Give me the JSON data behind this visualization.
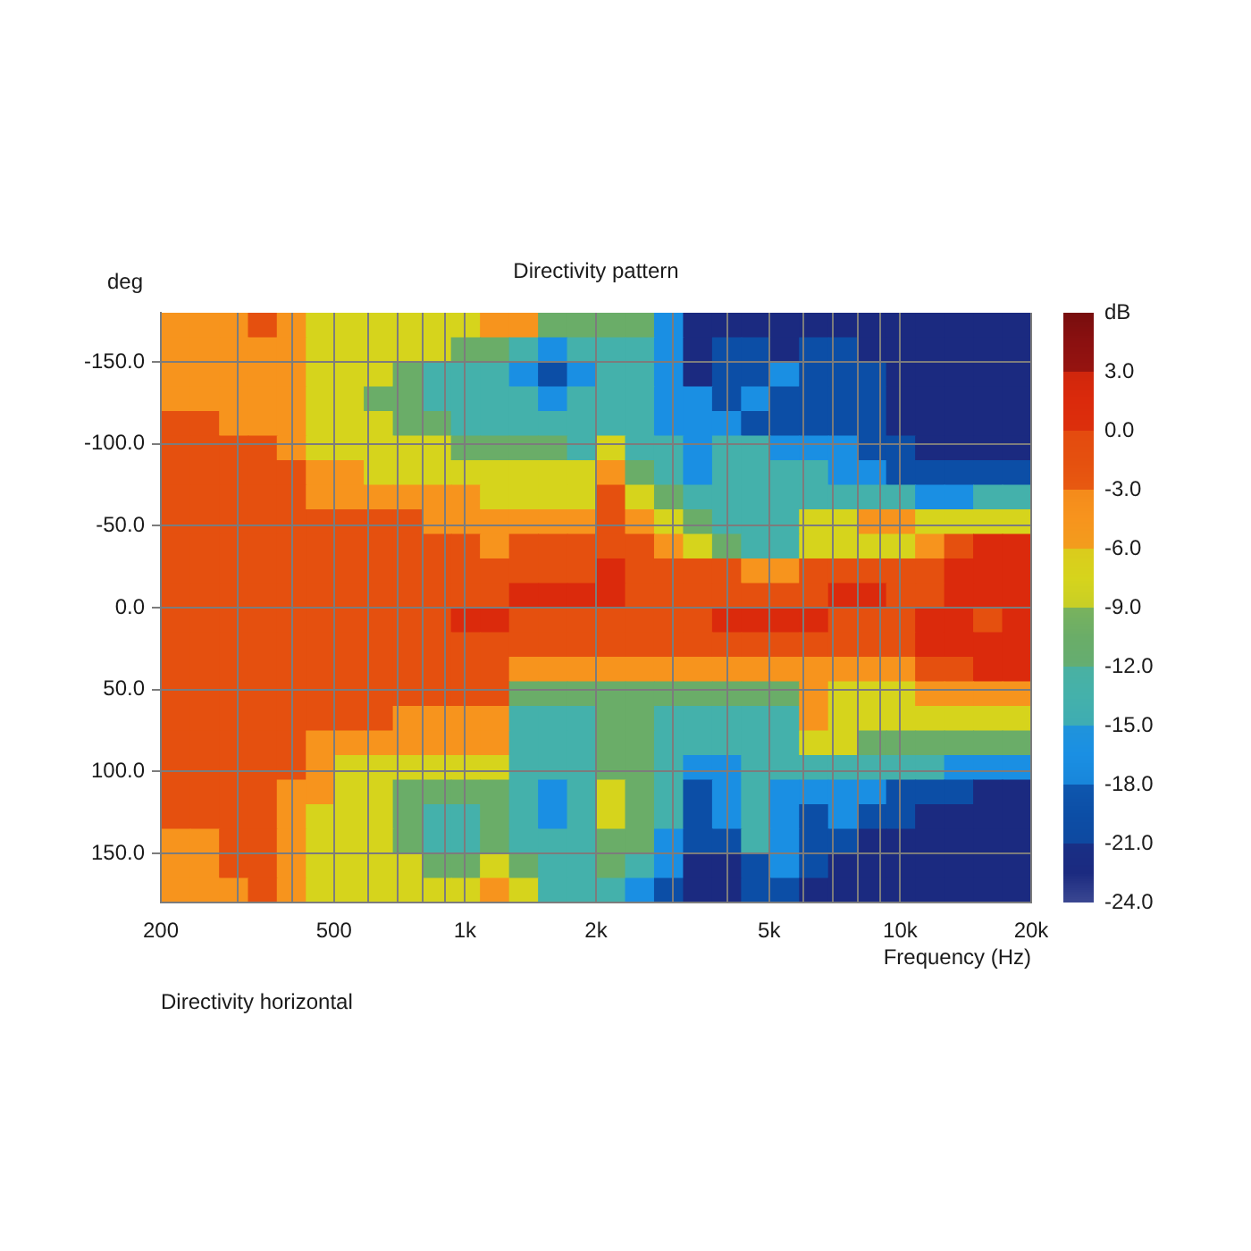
{
  "chart_data": {
    "type": "heatmap",
    "title": "Directivity pattern",
    "xlabel": "Frequency (Hz)",
    "ylabel": "deg",
    "clabel": "dB",
    "annotations": [
      "Directivity horizontal"
    ],
    "x": [
      216,
      252,
      294,
      342,
      399,
      465,
      542,
      632,
      737,
      860,
      1002,
      1169,
      1363,
      1589,
      1852,
      2160,
      2518,
      2936,
      3423,
      3991,
      4652,
      5424,
      6324,
      7373,
      8596,
      10024,
      11687,
      13626,
      15886,
      18520
    ],
    "cells": [
      [
        -4.5,
        -4.5,
        -4.5,
        -1.5,
        -4.5,
        -7.5,
        -7.5,
        -7.5,
        -7.5,
        -7.5,
        -7.5,
        -4.5,
        -4.5,
        -10.5,
        -10.5,
        -10.5,
        -10.5,
        -16.5,
        -22.5,
        -22.5,
        -22.5,
        -22.5,
        -22.5,
        -22.5,
        -22.5,
        -22.5,
        -22.5,
        -22.5,
        -22.5,
        -22.5
      ],
      [
        -4.5,
        -4.5,
        -4.5,
        -4.5,
        -4.5,
        -7.5,
        -7.5,
        -7.5,
        -7.5,
        -7.5,
        -10.5,
        -10.5,
        -13.5,
        -16.5,
        -13.5,
        -13.5,
        -13.5,
        -16.5,
        -22.5,
        -19.5,
        -19.5,
        -22.5,
        -19.5,
        -19.5,
        -22.5,
        -22.5,
        -22.5,
        -22.5,
        -22.5,
        -22.5
      ],
      [
        -4.5,
        -4.5,
        -4.5,
        -4.5,
        -4.5,
        -7.5,
        -7.5,
        -7.5,
        -10.5,
        -13.5,
        -13.5,
        -13.5,
        -16.5,
        -19.5,
        -16.5,
        -13.5,
        -13.5,
        -16.5,
        -22.5,
        -19.5,
        -19.5,
        -16.5,
        -19.5,
        -19.5,
        -19.5,
        -22.5,
        -22.5,
        -22.5,
        -22.5,
        -22.5
      ],
      [
        -4.5,
        -4.5,
        -4.5,
        -4.5,
        -4.5,
        -7.5,
        -7.5,
        -10.5,
        -10.5,
        -13.5,
        -13.5,
        -13.5,
        -13.5,
        -16.5,
        -13.5,
        -13.5,
        -13.5,
        -16.5,
        -16.5,
        -19.5,
        -16.5,
        -19.5,
        -19.5,
        -19.5,
        -19.5,
        -22.5,
        -22.5,
        -22.5,
        -22.5,
        -22.5
      ],
      [
        -1.5,
        -1.5,
        -4.5,
        -4.5,
        -4.5,
        -7.5,
        -7.5,
        -7.5,
        -10.5,
        -10.5,
        -13.5,
        -13.5,
        -13.5,
        -13.5,
        -13.5,
        -13.5,
        -13.5,
        -16.5,
        -16.5,
        -16.5,
        -19.5,
        -19.5,
        -19.5,
        -19.5,
        -19.5,
        -22.5,
        -22.5,
        -22.5,
        -22.5,
        -22.5
      ],
      [
        -1.5,
        -1.5,
        -1.5,
        -1.5,
        -4.5,
        -7.5,
        -7.5,
        -7.5,
        -7.5,
        -7.5,
        -10.5,
        -10.5,
        -10.5,
        -10.5,
        -13.5,
        -7.5,
        -13.5,
        -13.5,
        -16.5,
        -13.5,
        -13.5,
        -16.5,
        -16.5,
        -16.5,
        -19.5,
        -19.5,
        -22.5,
        -22.5,
        -22.5,
        -22.5
      ],
      [
        -1.5,
        -1.5,
        -1.5,
        -1.5,
        -1.5,
        -4.5,
        -4.5,
        -7.5,
        -7.5,
        -7.5,
        -7.5,
        -7.5,
        -7.5,
        -7.5,
        -7.5,
        -4.5,
        -10.5,
        -13.5,
        -16.5,
        -13.5,
        -13.5,
        -13.5,
        -13.5,
        -16.5,
        -16.5,
        -19.5,
        -19.5,
        -19.5,
        -19.5,
        -19.5
      ],
      [
        -1.5,
        -1.5,
        -1.5,
        -1.5,
        -1.5,
        -4.5,
        -4.5,
        -4.5,
        -4.5,
        -4.5,
        -4.5,
        -7.5,
        -7.5,
        -7.5,
        -7.5,
        -1.5,
        -7.5,
        -10.5,
        -13.5,
        -13.5,
        -13.5,
        -13.5,
        -13.5,
        -13.5,
        -13.5,
        -13.5,
        -16.5,
        -16.5,
        -13.5,
        -13.5
      ],
      [
        -1.5,
        -1.5,
        -1.5,
        -1.5,
        -1.5,
        -1.5,
        -1.5,
        -1.5,
        -1.5,
        -4.5,
        -4.5,
        -4.5,
        -4.5,
        -4.5,
        -4.5,
        -1.5,
        -4.5,
        -7.5,
        -10.5,
        -13.5,
        -13.5,
        -13.5,
        -7.5,
        -7.5,
        -4.5,
        -4.5,
        -7.5,
        -7.5,
        -7.5,
        -7.5
      ],
      [
        -1.5,
        -1.5,
        -1.5,
        -1.5,
        -1.5,
        -1.5,
        -1.5,
        -1.5,
        -1.5,
        -1.5,
        -1.5,
        -4.5,
        -1.5,
        -1.5,
        -1.5,
        -1.5,
        -1.5,
        -4.5,
        -7.5,
        -10.5,
        -13.5,
        -13.5,
        -7.5,
        -7.5,
        -7.5,
        -7.5,
        -4.5,
        -1.5,
        1.5,
        1.5
      ],
      [
        -1.5,
        -1.5,
        -1.5,
        -1.5,
        -1.5,
        -1.5,
        -1.5,
        -1.5,
        -1.5,
        -1.5,
        -1.5,
        -1.5,
        -1.5,
        -1.5,
        -1.5,
        1.5,
        -1.5,
        -1.5,
        -1.5,
        -1.5,
        -4.5,
        -4.5,
        -1.5,
        -1.5,
        -1.5,
        -1.5,
        -1.5,
        1.5,
        1.5,
        1.5
      ],
      [
        -1.5,
        -1.5,
        -1.5,
        -1.5,
        -1.5,
        -1.5,
        -1.5,
        -1.5,
        -1.5,
        -1.5,
        -1.5,
        -1.5,
        1.5,
        1.5,
        1.5,
        1.5,
        -1.5,
        -1.5,
        -1.5,
        -1.5,
        -1.5,
        -1.5,
        -1.5,
        1.5,
        1.5,
        -1.5,
        -1.5,
        1.5,
        1.5,
        1.5
      ],
      [
        -1.5,
        -1.5,
        -1.5,
        -1.5,
        -1.5,
        -1.5,
        -1.5,
        -1.5,
        -1.5,
        -1.5,
        1.5,
        1.5,
        -1.5,
        -1.5,
        -1.5,
        -1.5,
        -1.5,
        -1.5,
        -1.5,
        1.5,
        1.5,
        1.5,
        1.5,
        -1.5,
        -1.5,
        -1.5,
        1.5,
        1.5,
        -1.5,
        1.5
      ],
      [
        -1.5,
        -1.5,
        -1.5,
        -1.5,
        -1.5,
        -1.5,
        -1.5,
        -1.5,
        -1.5,
        -1.5,
        -1.5,
        -1.5,
        -1.5,
        -1.5,
        -1.5,
        -1.5,
        -1.5,
        -1.5,
        -1.5,
        -1.5,
        -1.5,
        -1.5,
        -1.5,
        -1.5,
        -1.5,
        -1.5,
        1.5,
        1.5,
        1.5,
        1.5
      ],
      [
        -1.5,
        -1.5,
        -1.5,
        -1.5,
        -1.5,
        -1.5,
        -1.5,
        -1.5,
        -1.5,
        -1.5,
        -1.5,
        -1.5,
        -4.5,
        -4.5,
        -4.5,
        -4.5,
        -4.5,
        -4.5,
        -4.5,
        -4.5,
        -4.5,
        -4.5,
        -4.5,
        -4.5,
        -4.5,
        -4.5,
        -1.5,
        -1.5,
        1.5,
        1.5
      ],
      [
        -1.5,
        -1.5,
        -1.5,
        -1.5,
        -1.5,
        -1.5,
        -1.5,
        -1.5,
        -1.5,
        -1.5,
        -1.5,
        -1.5,
        -10.5,
        -10.5,
        -10.5,
        -10.5,
        -10.5,
        -10.5,
        -10.5,
        -10.5,
        -10.5,
        -10.5,
        -4.5,
        -7.5,
        -7.5,
        -7.5,
        -4.5,
        -4.5,
        -4.5,
        -4.5
      ],
      [
        -1.5,
        -1.5,
        -1.5,
        -1.5,
        -1.5,
        -1.5,
        -1.5,
        -1.5,
        -4.5,
        -4.5,
        -4.5,
        -4.5,
        -13.5,
        -13.5,
        -13.5,
        -10.5,
        -10.5,
        -13.5,
        -13.5,
        -13.5,
        -13.5,
        -13.5,
        -4.5,
        -7.5,
        -7.5,
        -7.5,
        -7.5,
        -7.5,
        -7.5,
        -7.5
      ],
      [
        -1.5,
        -1.5,
        -1.5,
        -1.5,
        -1.5,
        -4.5,
        -4.5,
        -4.5,
        -4.5,
        -4.5,
        -4.5,
        -4.5,
        -13.5,
        -13.5,
        -13.5,
        -10.5,
        -10.5,
        -13.5,
        -13.5,
        -13.5,
        -13.5,
        -13.5,
        -7.5,
        -7.5,
        -10.5,
        -10.5,
        -10.5,
        -10.5,
        -10.5,
        -10.5
      ],
      [
        -1.5,
        -1.5,
        -1.5,
        -1.5,
        -1.5,
        -4.5,
        -7.5,
        -7.5,
        -7.5,
        -7.5,
        -7.5,
        -7.5,
        -13.5,
        -13.5,
        -13.5,
        -10.5,
        -10.5,
        -13.5,
        -16.5,
        -16.5,
        -13.5,
        -13.5,
        -13.5,
        -13.5,
        -13.5,
        -13.5,
        -13.5,
        -16.5,
        -16.5,
        -16.5
      ],
      [
        -1.5,
        -1.5,
        -1.5,
        -1.5,
        -4.5,
        -4.5,
        -7.5,
        -7.5,
        -10.5,
        -10.5,
        -10.5,
        -10.5,
        -13.5,
        -16.5,
        -13.5,
        -7.5,
        -10.5,
        -13.5,
        -19.5,
        -16.5,
        -13.5,
        -16.5,
        -16.5,
        -16.5,
        -16.5,
        -19.5,
        -19.5,
        -19.5,
        -22.5,
        -22.5
      ],
      [
        -1.5,
        -1.5,
        -1.5,
        -1.5,
        -4.5,
        -7.5,
        -7.5,
        -7.5,
        -10.5,
        -13.5,
        -13.5,
        -10.5,
        -13.5,
        -16.5,
        -13.5,
        -7.5,
        -10.5,
        -13.5,
        -19.5,
        -16.5,
        -13.5,
        -16.5,
        -19.5,
        -16.5,
        -19.5,
        -19.5,
        -22.5,
        -22.5,
        -22.5,
        -22.5
      ],
      [
        -4.5,
        -4.5,
        -1.5,
        -1.5,
        -4.5,
        -7.5,
        -7.5,
        -7.5,
        -10.5,
        -13.5,
        -13.5,
        -10.5,
        -13.5,
        -13.5,
        -13.5,
        -10.5,
        -10.5,
        -16.5,
        -19.5,
        -19.5,
        -13.5,
        -16.5,
        -19.5,
        -19.5,
        -22.5,
        -22.5,
        -22.5,
        -22.5,
        -22.5,
        -22.5
      ],
      [
        -4.5,
        -4.5,
        -1.5,
        -1.5,
        -4.5,
        -7.5,
        -7.5,
        -7.5,
        -7.5,
        -10.5,
        -10.5,
        -7.5,
        -10.5,
        -13.5,
        -13.5,
        -10.5,
        -13.5,
        -16.5,
        -22.5,
        -22.5,
        -19.5,
        -16.5,
        -19.5,
        -22.5,
        -22.5,
        -22.5,
        -22.5,
        -22.5,
        -22.5,
        -22.5
      ],
      [
        -4.5,
        -4.5,
        -4.5,
        -1.5,
        -4.5,
        -7.5,
        -7.5,
        -7.5,
        -7.5,
        -7.5,
        -7.5,
        -4.5,
        -7.5,
        -13.5,
        -13.5,
        -13.5,
        -16.5,
        -19.5,
        -22.5,
        -22.5,
        -19.5,
        -19.5,
        -22.5,
        -22.5,
        -22.5,
        -22.5,
        -22.5,
        -22.5,
        -22.5,
        -22.5
      ]
    ],
    "clim": [
      -24,
      6
    ],
    "cticks": [
      {
        "value": 3,
        "label": "3.0"
      },
      {
        "value": 0,
        "label": "0.0"
      },
      {
        "value": -3,
        "label": "-3.0"
      },
      {
        "value": -6,
        "label": "-6.0"
      },
      {
        "value": -9,
        "label": "-9.0"
      },
      {
        "value": -12,
        "label": "-12.0"
      },
      {
        "value": -15,
        "label": "-15.0"
      },
      {
        "value": -18,
        "label": "-18.0"
      },
      {
        "value": -21,
        "label": "-21.0"
      },
      {
        "value": -24,
        "label": "-24.0"
      }
    ],
    "xlim": [
      200,
      20000
    ],
    "xticks": [
      200,
      {
        "value": 300,
        "label": null
      },
      {
        "value": 400,
        "label": null
      },
      500,
      {
        "value": 600,
        "label": null
      },
      {
        "value": 700,
        "label": null
      },
      {
        "value": 800,
        "label": null
      },
      {
        "value": 900,
        "label": null
      },
      {
        "value": 1000,
        "label": "1k"
      },
      {
        "value": 2000,
        "label": "2k"
      },
      {
        "value": 3000,
        "label": null
      },
      {
        "value": 4000,
        "label": null
      },
      {
        "value": 5000,
        "label": "5k"
      },
      {
        "value": 6000,
        "label": null
      },
      {
        "value": 7000,
        "label": null
      },
      {
        "value": 8000,
        "label": null
      },
      {
        "value": 9000,
        "label": null
      },
      {
        "value": 10000,
        "label": "10k"
      },
      {
        "value": 20000,
        "label": "20k"
      }
    ],
    "ylim": [
      180,
      -180
    ],
    "yticks": [
      {
        "value": -150,
        "label": "-150.0"
      },
      {
        "value": -100,
        "label": "-100.0"
      },
      {
        "value": -50,
        "label": "-50.0"
      },
      {
        "value": 0,
        "label": "0.0"
      },
      {
        "value": 50,
        "label": "50.0"
      },
      {
        "value": 100,
        "label": "100.0"
      },
      {
        "value": 150,
        "label": "150.0"
      }
    ],
    "log": "x",
    "grid": true
  }
}
